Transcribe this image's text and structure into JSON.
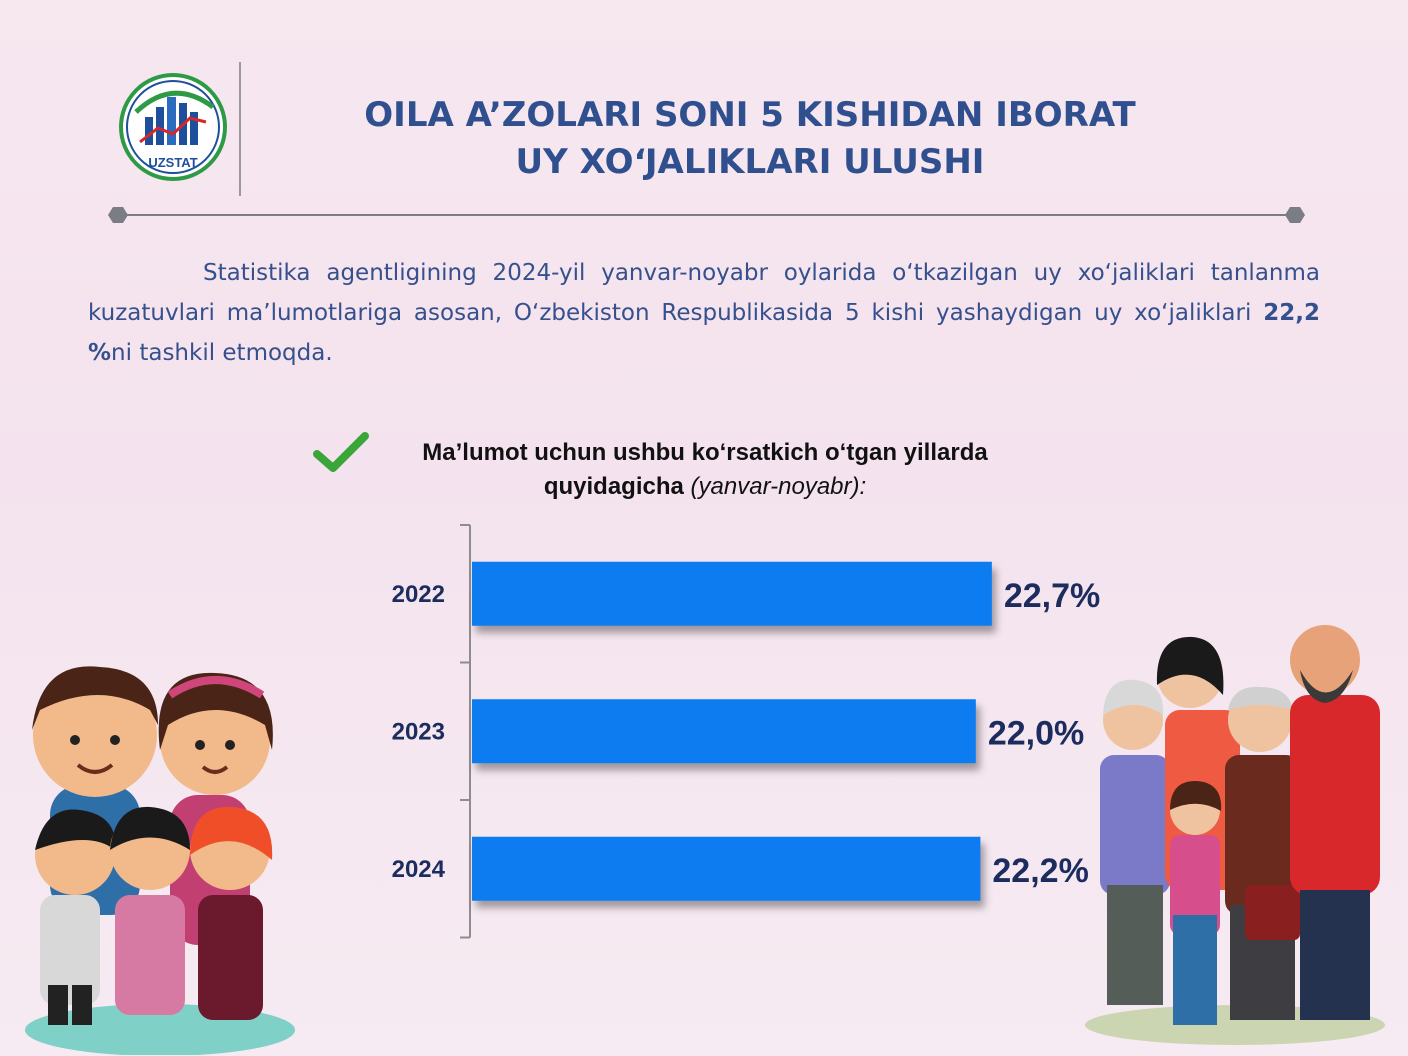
{
  "logo": {
    "text": "UZSTAT",
    "icon": "uzstat-logo"
  },
  "header": {
    "title_line1": "OILA A’ZOLARI SONI  5 KISHIDAN IBORAT",
    "title_line2": "UY XO‘JALIKLARI ULUSHI"
  },
  "intro": {
    "text_before": "Statistika agentligining 2024-yil yanvar-noyabr oylarida o‘tkazilgan uy xo‘jaliklari tanlanma kuzatuvlari ma’lumotlariga asosan, O‘zbekiston Respublikasida 5 kishi yashaydigan uy xo‘jaliklari ",
    "highlight": "22,2 %",
    "text_after": "ni tashkil etmoqda."
  },
  "subtitle": {
    "line1": "Ma’lumot uchun ushbu ko‘rsatkich o‘tgan yillarda",
    "line2_bold": "quyidagicha",
    "line2_italic": "(yanvar-noyabr):"
  },
  "colors": {
    "bar": "#0a7cf0",
    "title": "#2f4f8f",
    "label": "#1c2c5e",
    "check": "#3aa63a"
  },
  "chart_data": {
    "type": "bar",
    "orientation": "horizontal",
    "categories": [
      "2022",
      "2023",
      "2024"
    ],
    "values": [
      22.7,
      22.0,
      22.2
    ],
    "value_labels": [
      "22,7%",
      "22,0%",
      "22,2%"
    ],
    "unit": "%",
    "xlim": [
      0,
      26.2
    ],
    "grid": false,
    "legend": "none"
  },
  "illustrations": {
    "left": "family-illustration",
    "right": "multigenerational-family-illustration"
  }
}
